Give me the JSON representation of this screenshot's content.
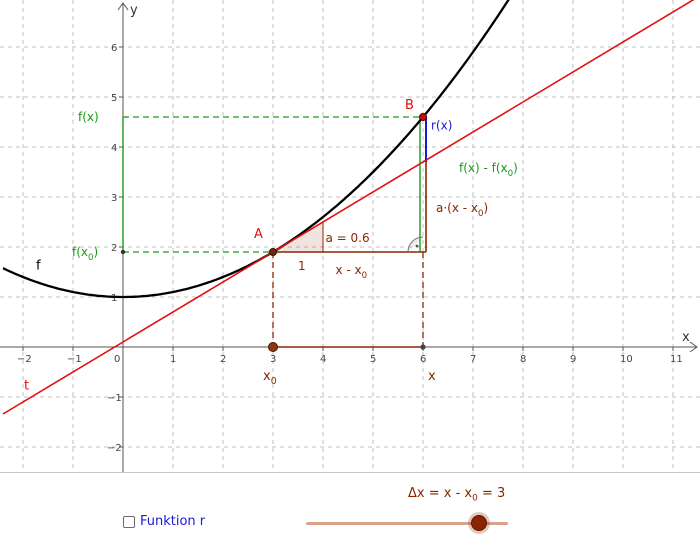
{
  "graph": {
    "x_axis_label": "x",
    "y_axis_label": "y",
    "x_range": [
      -2.4,
      11.5
    ],
    "y_range": [
      -2.45,
      6.9
    ],
    "x_ticks": [
      -2,
      -1,
      0,
      1,
      2,
      3,
      4,
      5,
      6,
      7,
      8,
      9,
      10,
      11
    ],
    "y_ticks": [
      -2,
      -1,
      1,
      2,
      3,
      4,
      5,
      6
    ],
    "grid": true,
    "function_f": {
      "label": "f",
      "a": 0.1,
      "h": 0,
      "k": 1,
      "color": "#000000"
    },
    "tangent_t": {
      "label": "t",
      "slope": 0.6,
      "color": "#e01010"
    },
    "point_A": {
      "label": "A",
      "x": 3,
      "y": 1.9
    },
    "point_B": {
      "label": "B",
      "x": 6,
      "y": 4.6
    },
    "slope_triangle": {
      "run_label": "1",
      "slope_label": "a = 0.6"
    },
    "labels": {
      "fx": "f(x)",
      "fx0": "f(x",
      "x0": "x",
      "x0_sub": "0",
      "x": "x",
      "rx": "r(x)",
      "diff_main": "f(x) - f(x",
      "diff_sub": "0",
      "diff_end": ")",
      "a_term_main": "a·(x - x",
      "a_term_sub": "0",
      "a_term_end": ")",
      "run_main": "x - x",
      "run_sub": "0",
      "sub0": "0",
      "close": ")"
    },
    "colors": {
      "green": "#1a9a1a",
      "brown": "#8b2500",
      "blue": "#1a1ad6",
      "red": "#e01010"
    }
  },
  "controls": {
    "checkbox_label": "Funktion r",
    "checkbox_checked": false,
    "slider": {
      "label_main": "Δx = x - x",
      "label_sub": "0",
      "label_end": " = 3",
      "value": 3,
      "min": 0,
      "max": 3.5
    }
  }
}
